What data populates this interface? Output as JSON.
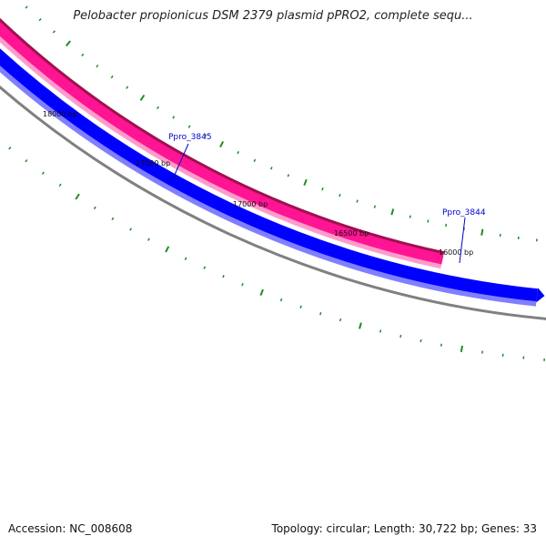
{
  "title": "Pelobacter propionicus DSM 2379 plasmid pPRO2, complete sequ...",
  "footer": {
    "accession": "Accession: NC_008608",
    "summary": "Topology: circular; Length: 30,722 bp; Genes: 33"
  },
  "scale_labels": [
    "18000 bp",
    "17500 bp",
    "17000 bp",
    "16500 bp",
    "16000 bp"
  ],
  "genes": [
    {
      "name": "Ppro_3845",
      "strand": "reverse",
      "color": "#ff1493"
    },
    {
      "name": "Ppro_3844",
      "strand": "forward",
      "color": "#0000ff"
    }
  ],
  "colors": {
    "tick": "#228b22",
    "backbone": "#808080",
    "gene_label": "#0000cc"
  }
}
